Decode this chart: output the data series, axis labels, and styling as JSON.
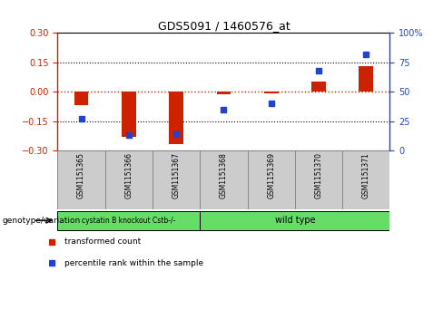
{
  "title": "GDS5091 / 1460576_at",
  "samples": [
    "GSM1151365",
    "GSM1151366",
    "GSM1151367",
    "GSM1151368",
    "GSM1151369",
    "GSM1151370",
    "GSM1151371"
  ],
  "transformed_count": [
    -0.07,
    -0.23,
    -0.265,
    -0.012,
    -0.01,
    0.05,
    0.13
  ],
  "percentile_rank": [
    27,
    13,
    14,
    35,
    40,
    68,
    82
  ],
  "groups": [
    {
      "label": "cystatin B knockout Cstb-/-",
      "start": 0,
      "end": 3,
      "color": "#66dd66"
    },
    {
      "label": "wild type",
      "start": 3,
      "end": 7,
      "color": "#66dd66"
    }
  ],
  "ylim_left": [
    -0.3,
    0.3
  ],
  "ylim_right": [
    0,
    100
  ],
  "yticks_left": [
    -0.3,
    -0.15,
    0,
    0.15,
    0.3
  ],
  "yticks_right": [
    0,
    25,
    50,
    75,
    100
  ],
  "bar_color": "#cc2200",
  "dot_color": "#2244cc",
  "zero_line_color": "#cc2200",
  "dotted_line_color": "#000000",
  "background_color": "#ffffff",
  "plot_bg": "#ffffff",
  "sample_box_color": "#cccccc",
  "sample_box_border": "#888888"
}
